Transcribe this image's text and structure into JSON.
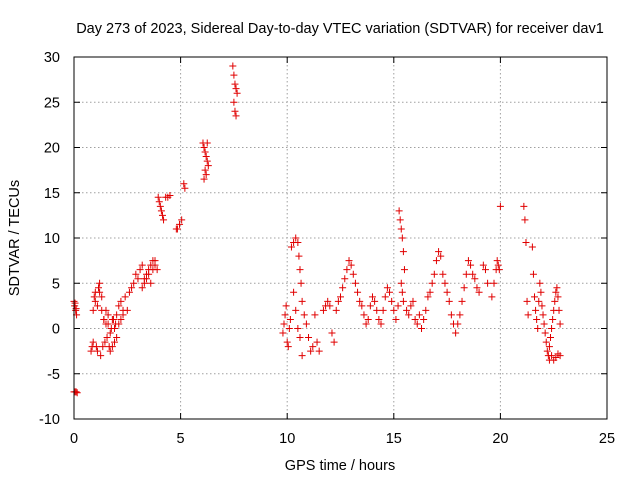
{
  "chart_data": {
    "type": "scatter",
    "title": "Day 273 of 2023, Sidereal Day-to-day VTEC variation (SDTVAR) for receiver dav1",
    "xlabel": "GPS time / hours",
    "ylabel": "SDTVAR / TECUs",
    "xlim": [
      0,
      25
    ],
    "ylim": [
      -10,
      30
    ],
    "xticks": [
      0,
      5,
      10,
      15,
      20,
      25
    ],
    "yticks": [
      -10,
      -5,
      0,
      5,
      10,
      15,
      20,
      25,
      30
    ],
    "xtick_labels": [
      "0",
      "5",
      "10",
      "15",
      "20",
      "25"
    ],
    "ytick_labels": [
      "-10",
      "-5",
      "0",
      "5",
      "10",
      "15",
      "20",
      "25",
      "30"
    ],
    "grid": true,
    "marker": "+",
    "marker_color": "#e00000",
    "series": [
      {
        "name": "dav1",
        "x": [
          0.0,
          0.05,
          0.1,
          0.15,
          0.03,
          0.08,
          0.12,
          0.0,
          0.05,
          0.1,
          0.8,
          0.85,
          0.9,
          0.95,
          1.0,
          1.05,
          1.1,
          1.15,
          1.2,
          1.25,
          1.3,
          1.35,
          1.4,
          1.45,
          1.5,
          1.55,
          1.6,
          1.65,
          1.7,
          1.75,
          1.8,
          1.85,
          1.9,
          1.95,
          2.0,
          0.9,
          1.0,
          1.1,
          1.2,
          1.3,
          1.4,
          1.5,
          1.6,
          1.7,
          1.8,
          1.9,
          2.0,
          2.1,
          2.2,
          2.3,
          2.1,
          2.2,
          2.3,
          2.4,
          2.5,
          2.6,
          2.7,
          2.8,
          2.9,
          3.0,
          3.1,
          3.2,
          3.3,
          3.4,
          3.5,
          3.6,
          3.7,
          3.8,
          3.9,
          3.2,
          3.3,
          3.4,
          3.5,
          3.6,
          3.7,
          3.8,
          3.95,
          4.0,
          4.05,
          4.1,
          4.15,
          4.2,
          4.3,
          4.4,
          4.5,
          4.8,
          4.85,
          4.95,
          5.05,
          5.15,
          5.2,
          6.05,
          6.1,
          6.15,
          6.2,
          6.25,
          6.3,
          6.15,
          6.2,
          6.1,
          6.25,
          7.45,
          7.5,
          7.55,
          7.6,
          7.65,
          7.5,
          7.55,
          7.6,
          9.8,
          9.85,
          9.9,
          9.95,
          10.0,
          10.05,
          10.1,
          10.15,
          10.2,
          10.3,
          10.4,
          10.5,
          10.55,
          10.6,
          10.65,
          10.7,
          10.8,
          10.9,
          11.0,
          11.1,
          11.2,
          11.3,
          11.4,
          11.5,
          10.3,
          10.4,
          10.5,
          10.6,
          10.7,
          11.7,
          11.8,
          11.9,
          12.0,
          12.1,
          12.2,
          12.3,
          12.4,
          12.5,
          12.6,
          12.7,
          12.8,
          12.9,
          13.0,
          13.1,
          13.2,
          13.3,
          13.4,
          13.5,
          13.6,
          13.7,
          13.8,
          13.9,
          14.0,
          14.1,
          14.2,
          14.3,
          14.4,
          14.5,
          14.6,
          14.7,
          14.8,
          14.9,
          15.0,
          15.1,
          15.2,
          15.25,
          15.3,
          15.35,
          15.4,
          15.45,
          15.5,
          15.35,
          15.4,
          15.45,
          15.6,
          15.7,
          15.8,
          15.9,
          16.0,
          16.1,
          16.2,
          16.3,
          16.4,
          16.5,
          16.6,
          16.7,
          16.8,
          16.9,
          17.0,
          17.1,
          17.2,
          17.3,
          17.4,
          17.5,
          17.6,
          17.7,
          17.8,
          17.9,
          18.0,
          18.1,
          18.2,
          18.3,
          18.4,
          18.5,
          18.6,
          18.7,
          18.8,
          18.9,
          19.0,
          19.2,
          19.3,
          19.4,
          19.6,
          19.7,
          19.8,
          19.85,
          19.9,
          19.95,
          20.0,
          21.1,
          21.15,
          21.2,
          21.25,
          21.3,
          21.5,
          21.55,
          21.6,
          21.65,
          21.7,
          21.75,
          21.8,
          21.85,
          21.9,
          21.95,
          22.0,
          22.05,
          22.1,
          22.15,
          22.2,
          22.25,
          22.3,
          22.35,
          22.4,
          22.45,
          22.5,
          22.55,
          22.6,
          22.65,
          22.7,
          22.75,
          22.8,
          22.3,
          22.4,
          22.5,
          22.6,
          22.7,
          22.8
        ],
        "y": [
          -7.0,
          -7.0,
          -7.0,
          -7.1,
          2.5,
          2.0,
          1.5,
          3.0,
          2.8,
          2.2,
          -2.5,
          -2.0,
          -1.5,
          3.5,
          4.0,
          -2.0,
          -2.5,
          4.5,
          5.0,
          -3.0,
          2.0,
          -2.0,
          1.0,
          -1.5,
          0.5,
          -1.0,
          1.5,
          -2.0,
          -2.5,
          0.0,
          -2.0,
          1.0,
          -1.5,
          0.5,
          -1.0,
          2.0,
          3.0,
          2.5,
          4.0,
          3.5,
          1.0,
          2.0,
          0.5,
          -0.5,
          1.0,
          0.0,
          1.5,
          0.5,
          1.0,
          2.0,
          2.5,
          3.0,
          1.5,
          3.5,
          2.0,
          4.0,
          4.5,
          5.0,
          6.0,
          5.5,
          6.5,
          7.0,
          5.5,
          6.0,
          6.5,
          7.0,
          7.5,
          7.0,
          6.5,
          4.5,
          5.0,
          5.5,
          6.0,
          5.0,
          6.5,
          7.5,
          14.5,
          14.0,
          13.5,
          13.0,
          12.5,
          12.0,
          14.5,
          14.5,
          14.7,
          11.0,
          11.0,
          11.5,
          12.0,
          16.0,
          15.5,
          20.5,
          20.0,
          19.5,
          19.0,
          18.5,
          18.0,
          17.5,
          17.0,
          16.5,
          20.5,
          29.0,
          28.0,
          27.0,
          26.5,
          26.0,
          25.0,
          24.0,
          23.5,
          -0.5,
          0.5,
          1.5,
          2.5,
          -1.5,
          -2.0,
          0.0,
          1.0,
          9.0,
          9.5,
          10.0,
          9.5,
          8.0,
          6.5,
          5.0,
          3.0,
          1.5,
          0.5,
          -1.0,
          -2.5,
          -2.0,
          1.5,
          -1.5,
          -2.5,
          4.0,
          2.0,
          0.0,
          -1.0,
          -3.0,
          2.0,
          2.5,
          3.0,
          2.5,
          -0.5,
          -1.5,
          2.0,
          3.0,
          3.5,
          4.5,
          5.5,
          6.5,
          7.5,
          7.0,
          6.0,
          5.0,
          4.0,
          3.0,
          2.5,
          1.5,
          0.5,
          1.0,
          2.5,
          3.5,
          3.0,
          2.0,
          1.0,
          0.5,
          2.0,
          3.5,
          4.5,
          4.0,
          3.0,
          2.0,
          1.0,
          2.5,
          13.0,
          12.0,
          11.0,
          10.0,
          8.5,
          6.5,
          5.0,
          4.0,
          3.0,
          2.0,
          1.5,
          2.5,
          3.0,
          1.0,
          0.5,
          1.5,
          0.0,
          1.0,
          2.0,
          3.5,
          4.0,
          5.0,
          6.0,
          7.5,
          8.5,
          8.0,
          6.0,
          5.0,
          4.0,
          3.0,
          1.5,
          0.5,
          -0.5,
          0.5,
          1.5,
          3.0,
          4.5,
          6.0,
          7.5,
          7.0,
          6.0,
          5.5,
          4.5,
          4.0,
          7.0,
          6.5,
          5.0,
          3.5,
          5.0,
          6.5,
          7.5,
          7.0,
          6.5,
          13.5,
          13.5,
          12.0,
          9.5,
          3.0,
          1.5,
          9.0,
          6.0,
          3.5,
          2.0,
          1.0,
          0.0,
          3.0,
          5.0,
          4.0,
          2.5,
          1.5,
          0.5,
          -0.5,
          -1.5,
          -2.5,
          -3.0,
          -2.0,
          -1.0,
          0.0,
          1.0,
          2.0,
          3.0,
          4.0,
          4.5,
          3.5,
          2.0,
          0.5,
          -3.5,
          -3.0,
          -3.5,
          -3.2,
          -2.8,
          -3.0
        ]
      }
    ]
  }
}
